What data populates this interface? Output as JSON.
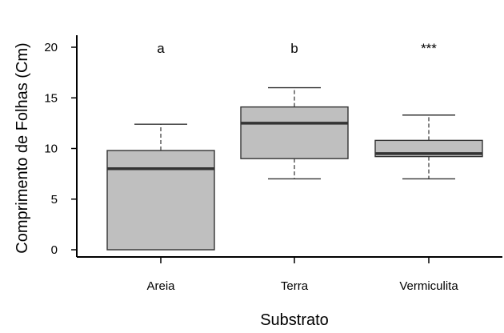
{
  "chart_data": {
    "type": "box",
    "title": "",
    "xlabel": "Substrato",
    "ylabel": "Comprimento de Folhas (Cm)",
    "ylim": [
      -0.5,
      21
    ],
    "yticks": [
      0,
      5,
      10,
      15,
      20
    ],
    "categories": [
      "Areia",
      "Terra",
      "Vermiculita"
    ],
    "boxes": [
      {
        "category": "Areia",
        "whisker_low": 0,
        "q1": 0,
        "median": 8.0,
        "q3": 9.8,
        "whisker_high": 12.4
      },
      {
        "category": "Terra",
        "whisker_low": 7.0,
        "q1": 9.0,
        "median": 12.5,
        "q3": 14.1,
        "whisker_high": 16.0
      },
      {
        "category": "Vermiculita",
        "whisker_low": 7.0,
        "q1": 9.2,
        "median": 9.5,
        "q3": 10.8,
        "whisker_high": 13.3
      }
    ],
    "annotations": [
      "a",
      "b",
      "***"
    ],
    "box_fill": "#bfbfbf",
    "box_stroke": "#333333",
    "median_color": "#333333",
    "grid": false,
    "legend": "none"
  }
}
